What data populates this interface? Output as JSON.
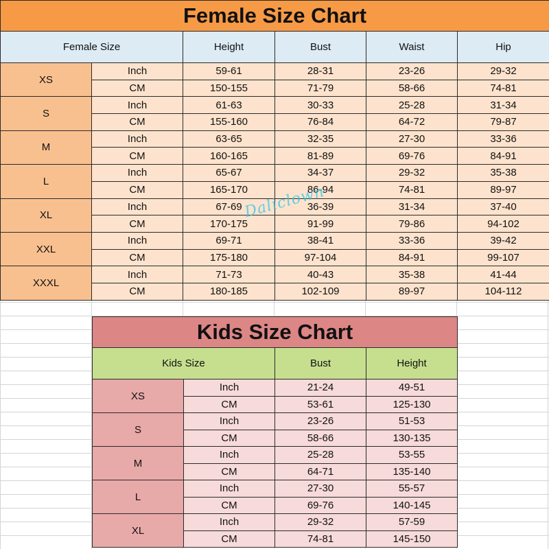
{
  "female": {
    "title": "Female Size Chart",
    "headers": [
      "Female Size",
      "Height",
      "Bust",
      "Waist",
      "Hip"
    ],
    "rows": [
      {
        "size": "XS",
        "inch": [
          "59-61",
          "28-31",
          "23-26",
          "29-32"
        ],
        "cm": [
          "150-155",
          "71-79",
          "58-66",
          "74-81"
        ]
      },
      {
        "size": "S",
        "inch": [
          "61-63",
          "30-33",
          "25-28",
          "31-34"
        ],
        "cm": [
          "155-160",
          "76-84",
          "64-72",
          "79-87"
        ]
      },
      {
        "size": "M",
        "inch": [
          "63-65",
          "32-35",
          "27-30",
          "33-36"
        ],
        "cm": [
          "160-165",
          "81-89",
          "69-76",
          "84-91"
        ]
      },
      {
        "size": "L",
        "inch": [
          "65-67",
          "34-37",
          "29-32",
          "35-38"
        ],
        "cm": [
          "165-170",
          "86-94",
          "74-81",
          "89-97"
        ]
      },
      {
        "size": "XL",
        "inch": [
          "67-69",
          "36-39",
          "31-34",
          "37-40"
        ],
        "cm": [
          "170-175",
          "91-99",
          "79-86",
          "94-102"
        ]
      },
      {
        "size": "XXL",
        "inch": [
          "69-71",
          "38-41",
          "33-36",
          "39-42"
        ],
        "cm": [
          "175-180",
          "97-104",
          "84-91",
          "99-107"
        ]
      },
      {
        "size": "XXXL",
        "inch": [
          "71-73",
          "40-43",
          "35-38",
          "41-44"
        ],
        "cm": [
          "180-185",
          "102-109",
          "89-97",
          "104-112"
        ]
      }
    ]
  },
  "kids": {
    "title": "Kids Size Chart",
    "headers": [
      "Kids Size",
      "Bust",
      "Height"
    ],
    "rows": [
      {
        "size": "XS",
        "inch": [
          "21-24",
          "49-51"
        ],
        "cm": [
          "53-61",
          "125-130"
        ]
      },
      {
        "size": "S",
        "inch": [
          "23-26",
          "51-53"
        ],
        "cm": [
          "58-66",
          "130-135"
        ]
      },
      {
        "size": "M",
        "inch": [
          "25-28",
          "53-55"
        ],
        "cm": [
          "64-71",
          "135-140"
        ]
      },
      {
        "size": "L",
        "inch": [
          "27-30",
          "55-57"
        ],
        "cm": [
          "69-76",
          "140-145"
        ]
      },
      {
        "size": "XL",
        "inch": [
          "29-32",
          "57-59"
        ],
        "cm": [
          "74-81",
          "145-150"
        ]
      }
    ]
  },
  "units": {
    "inch": "Inch",
    "cm": "CM"
  },
  "watermark": "Daliclown"
}
